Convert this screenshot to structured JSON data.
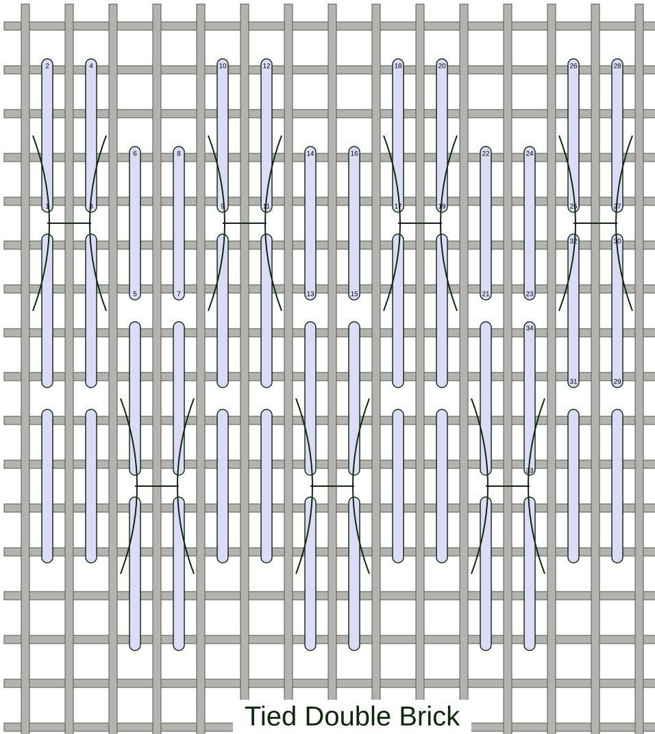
{
  "title": "Tied Double Brick",
  "labels": [
    "1",
    "2",
    "3",
    "4",
    "5",
    "6",
    "7",
    "8",
    "9",
    "10",
    "11",
    "12",
    "13",
    "14",
    "15",
    "16",
    "17",
    "18",
    "19",
    "20",
    "21",
    "22",
    "23",
    "24",
    "25",
    "26",
    "27",
    "28",
    "29",
    "30",
    "31",
    "32",
    "33",
    "34"
  ]
}
